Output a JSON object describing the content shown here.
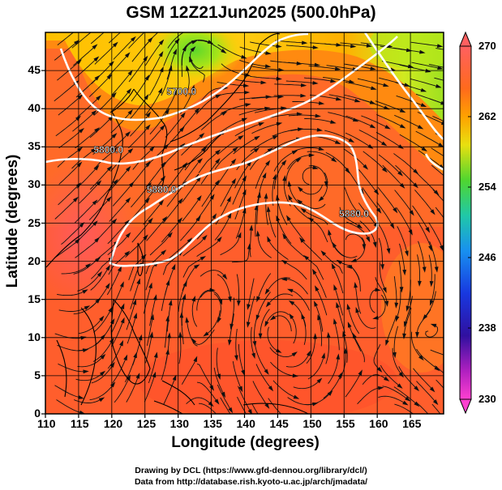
{
  "title": "GSM 12Z21Jun2025 (500.0hPa)",
  "xlabel": "Longitude (degrees)",
  "ylabel": "Latitude  (degrees)",
  "credits": {
    "line1": "Drawing by DCL (https://www.gfd-dennou.org/library/dcl/)",
    "line2": "Data from http://database.rish.kyoto-u.ac.jp/arch/jmadata/"
  },
  "map": {
    "lon_range": [
      110,
      170
    ],
    "lat_range": [
      0,
      50
    ],
    "lon_ticks": [
      110,
      115,
      120,
      125,
      130,
      135,
      140,
      145,
      150,
      155,
      160,
      165
    ],
    "lat_ticks": [
      0,
      5,
      10,
      15,
      20,
      25,
      30,
      35,
      40,
      45
    ],
    "contour_labels": [
      {
        "text": "5700.0",
        "lon": 130.5,
        "lat": 41.8
      },
      {
        "text": "5800.0",
        "lon": 119.5,
        "lat": 34.2
      },
      {
        "text": "5880.0",
        "lon": 127.5,
        "lat": 29.0
      },
      {
        "text": "5880.0",
        "lon": 156.5,
        "lat": 25.8
      }
    ]
  },
  "colorbar": {
    "ticks": [
      "270",
      "262",
      "254",
      "246",
      "238",
      "230"
    ],
    "colors": [
      "#ff6b6b",
      "#ff5a3c",
      "#ff7a1e",
      "#ffa000",
      "#ffd000",
      "#d8ef20",
      "#7fe020",
      "#21d56a",
      "#20c8c8",
      "#1c8cf0",
      "#2048e8",
      "#2c18b8",
      "#8020c8",
      "#e040c0",
      "#ff40d0"
    ]
  }
}
